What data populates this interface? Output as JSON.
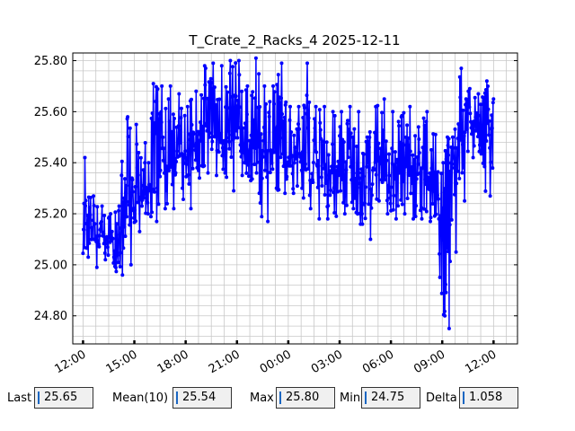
{
  "chart_data": {
    "type": "line",
    "title": "T_Crate_2_Racks_4 2025-12-11",
    "xlabel": "",
    "ylabel": "",
    "x_tick_labels": [
      "12:00",
      "15:00",
      "18:00",
      "21:00",
      "00:00",
      "03:00",
      "06:00",
      "09:00",
      "12:00"
    ],
    "x_tick_hours": [
      12,
      15,
      18,
      21,
      24,
      27,
      30,
      33,
      36
    ],
    "x_range_hours": [
      11.4,
      37.4
    ],
    "y_tick_labels": [
      "24.80",
      "25.00",
      "25.20",
      "25.40",
      "25.60",
      "25.80"
    ],
    "y_ticks": [
      24.8,
      25.0,
      25.2,
      25.4,
      25.6,
      25.8
    ],
    "ylim": [
      24.69,
      25.83
    ],
    "grid": true,
    "series": [
      {
        "color": "#0000ff",
        "marker": "dot",
        "x_hours": [
          12.0,
          12.5,
          13.0,
          13.5,
          14.0,
          14.5,
          15.0,
          15.5,
          16.0,
          16.5,
          17.0,
          17.5,
          18.0,
          18.5,
          19.0,
          19.5,
          20.0,
          20.5,
          21.0,
          21.5,
          22.0,
          22.5,
          23.0,
          23.5,
          24.0,
          24.5,
          25.0,
          25.5,
          26.0,
          26.5,
          27.0,
          27.5,
          28.0,
          28.5,
          29.0,
          29.5,
          30.0,
          30.5,
          31.0,
          31.5,
          32.0,
          32.5,
          33.0,
          33.25,
          33.5,
          34.0,
          34.5,
          35.0,
          35.5,
          36.0
        ],
        "y_low": [
          25.03,
          24.99,
          25.02,
          25.03,
          24.96,
          25.0,
          25.13,
          25.2,
          25.17,
          25.22,
          25.22,
          25.3,
          25.22,
          25.34,
          25.36,
          25.35,
          25.36,
          25.29,
          25.35,
          25.33,
          25.28,
          25.17,
          25.3,
          25.28,
          25.28,
          25.3,
          25.22,
          25.18,
          25.18,
          25.19,
          25.2,
          25.22,
          25.2,
          25.1,
          25.25,
          25.2,
          25.18,
          25.2,
          25.18,
          25.18,
          25.17,
          25.18,
          24.8,
          24.75,
          25.05,
          25.25,
          25.42,
          25.45,
          25.27,
          25.33
        ],
        "y_high": [
          25.42,
          25.27,
          25.23,
          25.2,
          25.23,
          25.58,
          25.55,
          25.4,
          25.71,
          25.7,
          25.7,
          25.67,
          25.62,
          25.68,
          25.78,
          25.79,
          25.78,
          25.8,
          25.8,
          25.7,
          25.81,
          25.7,
          25.7,
          25.79,
          25.62,
          25.62,
          25.79,
          25.62,
          25.62,
          25.6,
          25.6,
          25.62,
          25.6,
          25.5,
          25.62,
          25.65,
          25.6,
          25.58,
          25.62,
          25.54,
          25.6,
          25.51,
          25.4,
          25.5,
          25.5,
          25.77,
          25.69,
          25.67,
          25.72,
          25.67
        ],
        "y_mean": [
          25.15,
          25.12,
          25.1,
          25.1,
          25.08,
          25.22,
          25.22,
          25.28,
          25.32,
          25.36,
          25.38,
          25.42,
          25.42,
          25.47,
          25.5,
          25.52,
          25.52,
          25.48,
          25.5,
          25.46,
          25.46,
          25.44,
          25.45,
          25.48,
          25.42,
          25.44,
          25.42,
          25.4,
          25.38,
          25.36,
          25.36,
          25.38,
          25.34,
          25.3,
          25.38,
          25.4,
          25.4,
          25.38,
          25.36,
          25.35,
          25.35,
          25.33,
          25.2,
          25.15,
          25.38,
          25.5,
          25.55,
          25.56,
          25.52,
          25.54
        ]
      }
    ]
  },
  "stats": {
    "last_label": "Last",
    "last_value": "25.65",
    "mean_label": "Mean(10)",
    "mean_value": "25.54",
    "max_label": "Max",
    "max_value": "25.80",
    "min_label": "Min",
    "min_value": "24.75",
    "delta_label": "Delta",
    "delta_value": "1.058"
  }
}
